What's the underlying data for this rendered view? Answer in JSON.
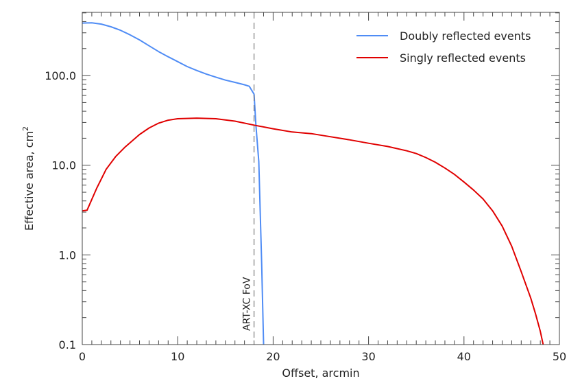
{
  "chart_data": {
    "type": "line",
    "xlabel": "Offset, arcmin",
    "ylabel": "Effective area, cm",
    "ylabel_superscript": "2",
    "xlim": [
      0,
      50
    ],
    "ylim": [
      0.1,
      507
    ],
    "yscale": "log",
    "x_ticks": [
      "0",
      "10",
      "20",
      "30",
      "40",
      "50"
    ],
    "y_ticks": [
      "0.1",
      "1.0",
      "10.0",
      "100.0"
    ],
    "grid": false,
    "legend_position": "top-right",
    "annotation": {
      "text": "ART-XC FoV",
      "x": 18
    },
    "series": [
      {
        "name": "Doubly reflected events",
        "color": "#4f8cf5",
        "x": [
          0,
          1,
          2,
          3,
          4,
          5,
          6,
          7,
          8,
          9,
          10,
          11,
          12,
          13,
          14,
          15,
          16,
          17,
          17.5,
          18,
          18.2,
          18.5,
          18.8,
          19
        ],
        "y": [
          385,
          388,
          375,
          350,
          320,
          285,
          250,
          215,
          185,
          162,
          143,
          126,
          114,
          104,
          96,
          89,
          84,
          79,
          76,
          62,
          28,
          11,
          0.8,
          0.1
        ]
      },
      {
        "name": "Singly reflected events",
        "color": "#e00000",
        "x": [
          0,
          0.5,
          1.5,
          2.5,
          3.5,
          4.5,
          6,
          7,
          8,
          9,
          10,
          12,
          14,
          16,
          18,
          20,
          22,
          24,
          26,
          28,
          30,
          32,
          34,
          35,
          36,
          37,
          38,
          39,
          40,
          41,
          42,
          43,
          44,
          45,
          46,
          47,
          47.5,
          48,
          48.3
        ],
        "y": [
          3.1,
          3.15,
          5.5,
          9,
          12.5,
          16,
          22,
          26,
          29.5,
          31.8,
          33,
          33.5,
          33,
          31,
          28,
          25.5,
          23.5,
          22.5,
          20.8,
          19.2,
          17.6,
          16.2,
          14.5,
          13.5,
          12.2,
          10.8,
          9.3,
          7.9,
          6.5,
          5.3,
          4.2,
          3.1,
          2.1,
          1.25,
          0.65,
          0.33,
          0.22,
          0.14,
          0.1
        ]
      }
    ]
  }
}
